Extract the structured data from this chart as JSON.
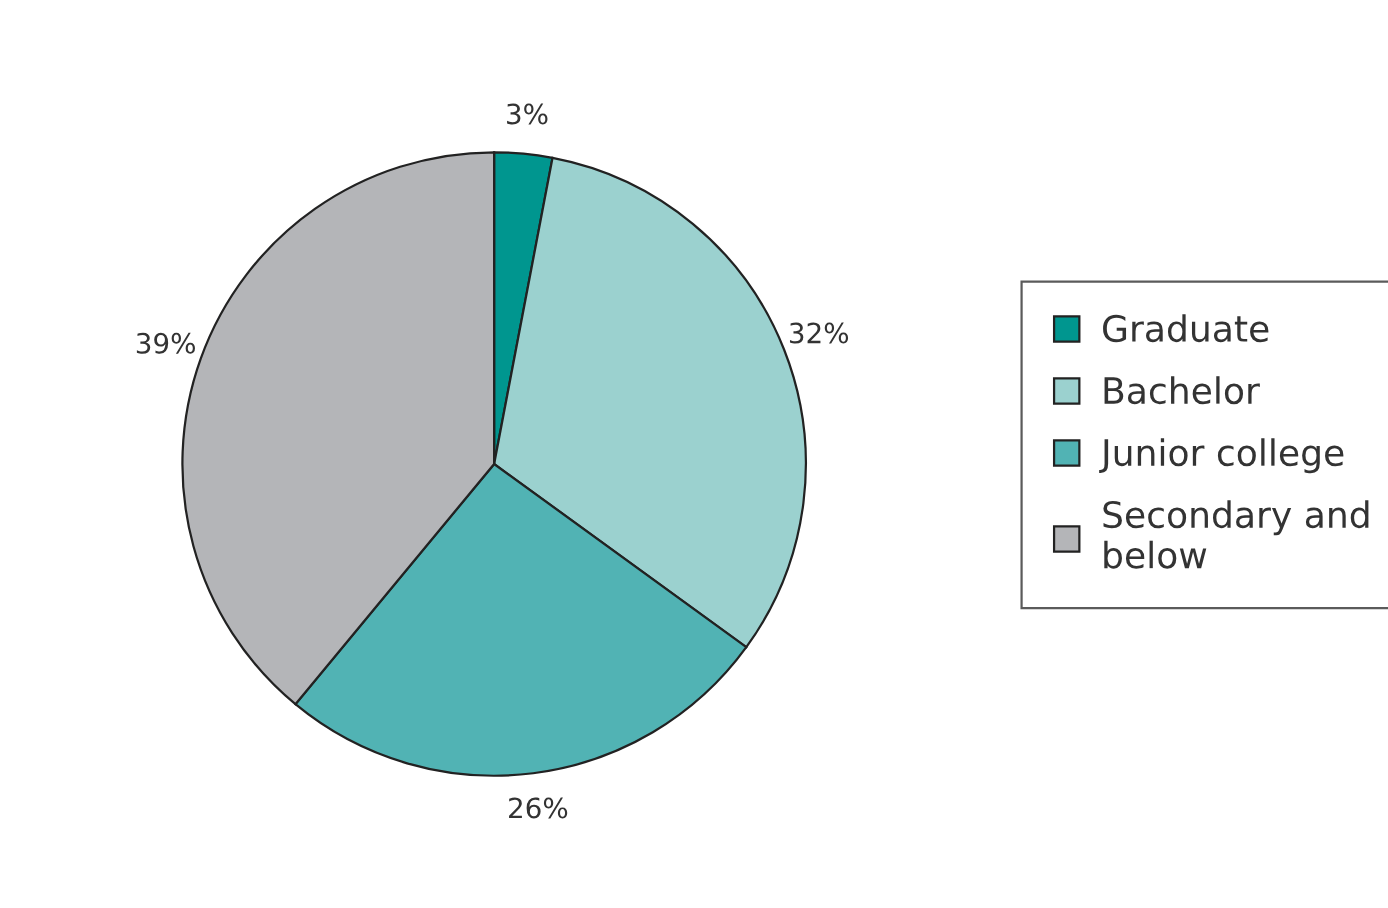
{
  "chart_data": {
    "type": "pie",
    "categories": [
      "Graduate",
      "Bachelor",
      "Junior college",
      "Secondary and\nbelow"
    ],
    "values": [
      3,
      32,
      26,
      39
    ],
    "colors": [
      "#00968f",
      "#9bd1cf",
      "#51b3b4",
      "#b4b5b8"
    ],
    "value_labels": [
      "3%",
      "32%",
      "26%",
      "39%"
    ],
    "legend": "right"
  }
}
